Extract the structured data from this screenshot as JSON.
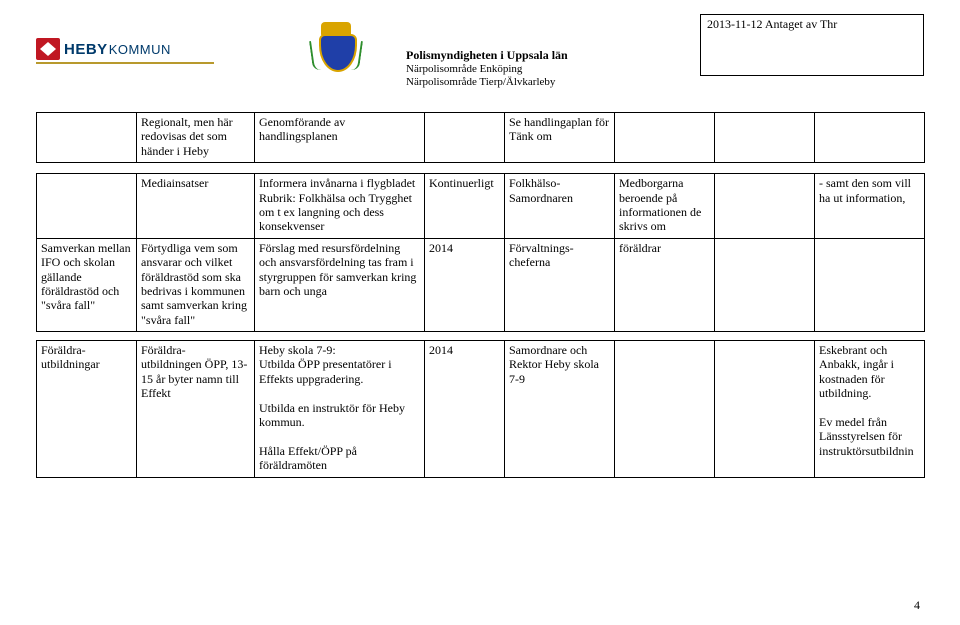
{
  "top_box": {
    "text": "2013-11-12 Antaget av Thr"
  },
  "logo": {
    "heby_bold": "HEBY",
    "heby_thin": "KOMMUN"
  },
  "polis": {
    "title": "Polismyndigheten i Uppsala län",
    "sub1": "Närpolisområde Enköping",
    "sub2": "Närpolisområde Tierp/Älvkarleby"
  },
  "table1": {
    "cols": {
      "c1": "",
      "c2": "Regionalt, men här redovisas det som händer i Heby",
      "c3": "Genomförande av handlingsplanen",
      "c4": "",
      "c5": "Se handlingaplan för Tänk om",
      "c6": "",
      "c7": "",
      "c8": ""
    }
  },
  "table2": {
    "row1": {
      "c1": "",
      "c2": "Mediainsatser",
      "c3": "Informera invånarna i flygbladet\nRubrik: Folkhälsa och Trygghet\nom t ex langning och dess konsekvenser",
      "c4": "Kontinuerligt",
      "c5": "Folkhälso-\nSamordnaren",
      "c6": "Medborgarna beroende på informationen de skrivs om",
      "c7": "",
      "c8": "- samt den som vill ha ut information,"
    },
    "row2": {
      "c1": "Samverkan mellan IFO och skolan gällande föräldrastöd och \"svåra fall\"",
      "c2": "Förtydliga vem som ansvarar och vilket föräldrastöd som ska bedrivas i kommunen samt samverkan kring \"svåra fall\"",
      "c3": "Förslag med resursfördelning och ansvarsfördelning tas fram i styrgruppen för samverkan kring barn och unga",
      "c4": "2014",
      "c5": "Förvaltnings-\ncheferna",
      "c6": "föräldrar",
      "c7": "",
      "c8": ""
    }
  },
  "table3": {
    "row1": {
      "c1": "Föräldra-\nutbildningar",
      "c2": "Föräldra-\nutbildningen ÖPP, 13-15 år byter namn till Effekt",
      "c3": "Heby skola 7-9:\nUtbilda ÖPP presentatörer i Effekts uppgradering.\n\nUtbilda en instruktör för Heby kommun.\n\nHålla Effekt/ÖPP på föräldramöten",
      "c4": "2014",
      "c5": "Samordnare och Rektor Heby skola 7-9",
      "c6": "",
      "c7": "",
      "c8": "Eskebrant och Anbakk, ingår i kostnaden för utbildning.\n\nEv medel från Länsstyrelsen för instruktörsutbildnin"
    }
  },
  "page_number": "4",
  "colors": {
    "text": "#000000",
    "heby_red": "#c01722",
    "heby_blue": "#003a6b",
    "heby_gold": "#b8992d",
    "crest_blue": "#1f3fa8",
    "crest_gold": "#d9a400",
    "wreath": "#2e8e2d",
    "background": "#ffffff"
  },
  "fontsize": {
    "body": 12,
    "polis_title": 12,
    "polis_sub": 11,
    "heby_bold": 15,
    "heby_thin": 13
  }
}
